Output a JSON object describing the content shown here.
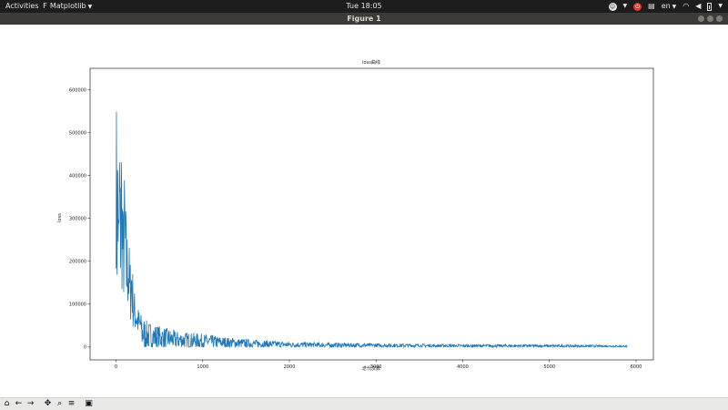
{
  "topbar": {
    "activities": "Activities",
    "app_glyph": "F",
    "app_name": "Matplotlib",
    "clock": "Tue 18:05",
    "language": "en"
  },
  "window": {
    "title": "Figure 1"
  },
  "toolbar": {
    "buttons": [
      "home-icon",
      "back-icon",
      "forward-icon",
      "pan-icon",
      "zoom-icon",
      "configure-subplots-icon",
      "save-icon"
    ]
  },
  "chart_data": {
    "type": "line",
    "title": "loss曲线",
    "xlabel": "迭代次数",
    "ylabel": "loss",
    "xlim": [
      -300,
      6200
    ],
    "ylim": [
      -30000,
      650000
    ],
    "xticks": [
      0,
      1000,
      2000,
      3000,
      4000,
      5000,
      6000
    ],
    "yticks": [
      0,
      100000,
      200000,
      300000,
      400000,
      500000,
      600000
    ],
    "series_color": "#1f77b4",
    "series": [
      {
        "x": [
          0,
          10,
          20,
          30,
          40,
          50,
          60,
          80,
          100,
          120,
          140,
          160,
          180,
          200,
          250,
          300,
          350,
          400,
          500,
          600,
          700,
          800,
          1000,
          1200,
          1500,
          1800,
          2000,
          2500,
          3000,
          3500,
          4000,
          4500,
          5000,
          5500,
          5900
        ],
        "y": [
          610000,
          300000,
          520000,
          250000,
          470000,
          330000,
          460000,
          280000,
          360000,
          230000,
          250000,
          170000,
          200000,
          120000,
          80000,
          60000,
          50000,
          45000,
          40000,
          35000,
          30000,
          28000,
          25000,
          20000,
          15000,
          12000,
          10000,
          8000,
          7000,
          6000,
          5000,
          5000,
          4500,
          4000,
          3000
        ]
      }
    ]
  }
}
